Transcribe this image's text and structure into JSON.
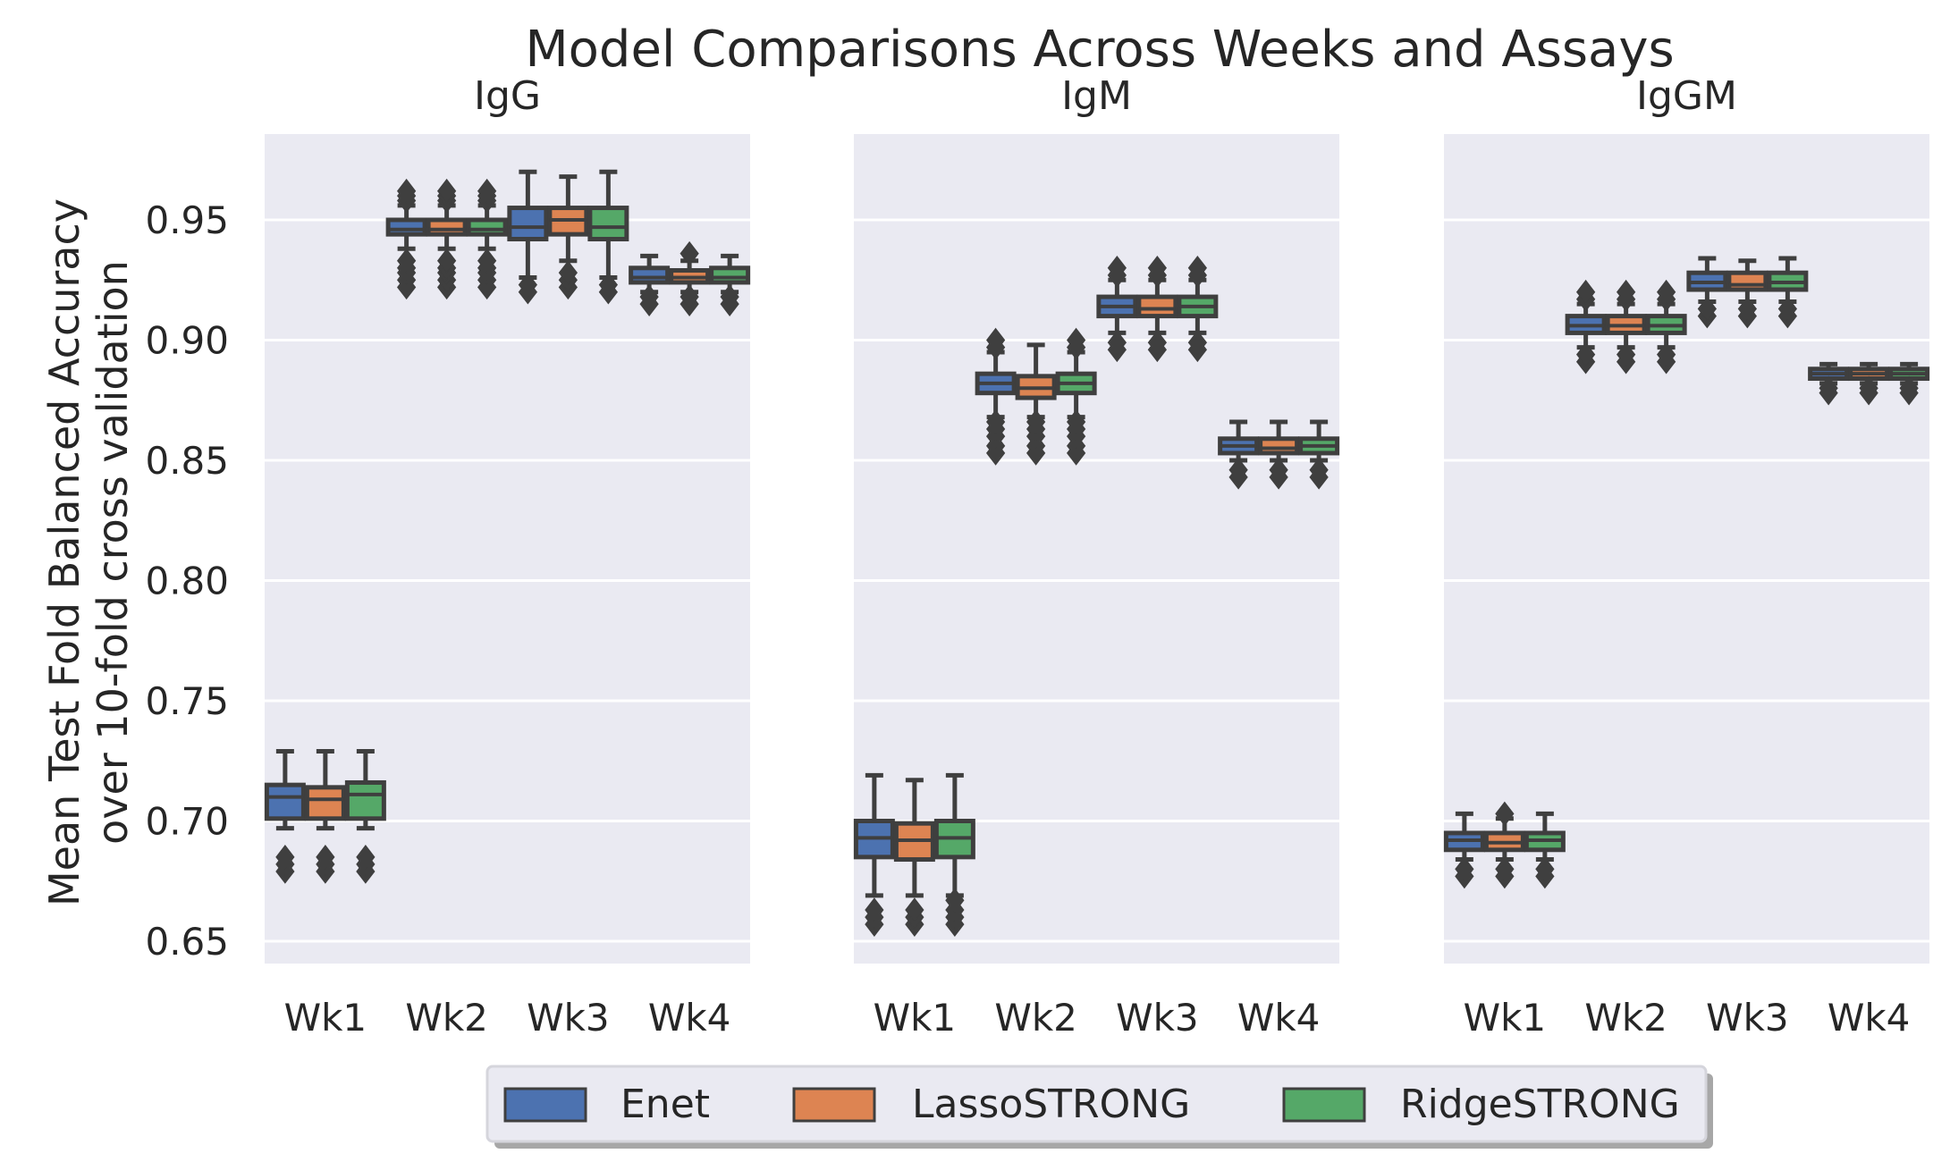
{
  "chart_data": {
    "type": "boxplot",
    "title": "Model Comparisons Across Weeks and Assays",
    "ylabel_line1": "Mean Test Fold Balanced Accuracy",
    "ylabel_line2": "over 10-fold cross validation",
    "ylim": [
      0.645,
      0.985
    ],
    "yticks": [
      "0.65",
      "0.70",
      "0.75",
      "0.80",
      "0.85",
      "0.90",
      "0.95"
    ],
    "categories": [
      "Wk1",
      "Wk2",
      "Wk3",
      "Wk4"
    ],
    "legend_placement": "bottom-center",
    "series_names": [
      "Enet",
      "LassoSTRONG",
      "RidgeSTRONG"
    ],
    "colors": [
      "#4c72b0",
      "#dd8452",
      "#55a868"
    ],
    "panels": [
      {
        "name": "IgG",
        "boxes": [
          [
            {
              "whislo": 0.697,
              "q1": 0.701,
              "med": 0.71,
              "q3": 0.715,
              "whishi": 0.729,
              "fliers": [
                0.679,
                0.682,
                0.685
              ]
            },
            {
              "whislo": 0.697,
              "q1": 0.701,
              "med": 0.709,
              "q3": 0.714,
              "whishi": 0.729,
              "fliers": [
                0.679,
                0.682,
                0.685
              ]
            },
            {
              "whislo": 0.697,
              "q1": 0.701,
              "med": 0.711,
              "q3": 0.716,
              "whishi": 0.729,
              "fliers": [
                0.679,
                0.682,
                0.685
              ]
            }
          ],
          [
            {
              "whislo": 0.938,
              "q1": 0.944,
              "med": 0.946,
              "q3": 0.95,
              "whishi": 0.956,
              "fliers": [
                0.922,
                0.925,
                0.928,
                0.93,
                0.933,
                0.958,
                0.96,
                0.962
              ]
            },
            {
              "whislo": 0.938,
              "q1": 0.944,
              "med": 0.946,
              "q3": 0.95,
              "whishi": 0.956,
              "fliers": [
                0.922,
                0.925,
                0.928,
                0.93,
                0.933,
                0.958,
                0.96,
                0.962
              ]
            },
            {
              "whislo": 0.938,
              "q1": 0.944,
              "med": 0.946,
              "q3": 0.95,
              "whishi": 0.956,
              "fliers": [
                0.922,
                0.925,
                0.928,
                0.93,
                0.933,
                0.958,
                0.96,
                0.962
              ]
            }
          ],
          [
            {
              "whislo": 0.926,
              "q1": 0.942,
              "med": 0.947,
              "q3": 0.955,
              "whishi": 0.97,
              "fliers": [
                0.92,
                0.923
              ]
            },
            {
              "whislo": 0.933,
              "q1": 0.944,
              "med": 0.95,
              "q3": 0.955,
              "whishi": 0.968,
              "fliers": [
                0.922,
                0.925,
                0.928
              ]
            },
            {
              "whislo": 0.926,
              "q1": 0.942,
              "med": 0.947,
              "q3": 0.955,
              "whishi": 0.97,
              "fliers": [
                0.92,
                0.923
              ]
            }
          ],
          [
            {
              "whislo": 0.92,
              "q1": 0.924,
              "med": 0.926,
              "q3": 0.93,
              "whishi": 0.935,
              "fliers": [
                0.915,
                0.918
              ]
            },
            {
              "whislo": 0.92,
              "q1": 0.924,
              "med": 0.926,
              "q3": 0.929,
              "whishi": 0.933,
              "fliers": [
                0.915,
                0.918,
                0.936
              ]
            },
            {
              "whislo": 0.92,
              "q1": 0.924,
              "med": 0.926,
              "q3": 0.93,
              "whishi": 0.935,
              "fliers": [
                0.915,
                0.918
              ]
            }
          ]
        ]
      },
      {
        "name": "IgM",
        "boxes": [
          [
            {
              "whislo": 0.669,
              "q1": 0.685,
              "med": 0.693,
              "q3": 0.7,
              "whishi": 0.719,
              "fliers": [
                0.657,
                0.66,
                0.663
              ]
            },
            {
              "whislo": 0.669,
              "q1": 0.684,
              "med": 0.692,
              "q3": 0.699,
              "whishi": 0.717,
              "fliers": [
                0.657,
                0.66,
                0.663
              ]
            },
            {
              "whislo": 0.669,
              "q1": 0.685,
              "med": 0.693,
              "q3": 0.7,
              "whishi": 0.719,
              "fliers": [
                0.657,
                0.66,
                0.663,
                0.667
              ]
            }
          ],
          [
            {
              "whislo": 0.868,
              "q1": 0.878,
              "med": 0.882,
              "q3": 0.886,
              "whishi": 0.895,
              "fliers": [
                0.853,
                0.856,
                0.86,
                0.863,
                0.866,
                0.897,
                0.9
              ]
            },
            {
              "whislo": 0.868,
              "q1": 0.876,
              "med": 0.88,
              "q3": 0.885,
              "whishi": 0.898,
              "fliers": [
                0.853,
                0.856,
                0.86,
                0.863,
                0.866
              ]
            },
            {
              "whislo": 0.868,
              "q1": 0.878,
              "med": 0.882,
              "q3": 0.886,
              "whishi": 0.895,
              "fliers": [
                0.853,
                0.856,
                0.86,
                0.863,
                0.866,
                0.897,
                0.9
              ]
            }
          ],
          [
            {
              "whislo": 0.903,
              "q1": 0.91,
              "med": 0.914,
              "q3": 0.918,
              "whishi": 0.925,
              "fliers": [
                0.896,
                0.899,
                0.927,
                0.93
              ]
            },
            {
              "whislo": 0.903,
              "q1": 0.91,
              "med": 0.913,
              "q3": 0.918,
              "whishi": 0.925,
              "fliers": [
                0.896,
                0.899,
                0.927,
                0.93
              ]
            },
            {
              "whislo": 0.903,
              "q1": 0.91,
              "med": 0.914,
              "q3": 0.918,
              "whishi": 0.925,
              "fliers": [
                0.896,
                0.899,
                0.927,
                0.93
              ]
            }
          ],
          [
            {
              "whislo": 0.85,
              "q1": 0.853,
              "med": 0.856,
              "q3": 0.859,
              "whishi": 0.866,
              "fliers": [
                0.843,
                0.846
              ]
            },
            {
              "whislo": 0.85,
              "q1": 0.853,
              "med": 0.855,
              "q3": 0.859,
              "whishi": 0.866,
              "fliers": [
                0.843,
                0.846
              ]
            },
            {
              "whislo": 0.85,
              "q1": 0.853,
              "med": 0.856,
              "q3": 0.859,
              "whishi": 0.866,
              "fliers": [
                0.843,
                0.846
              ]
            }
          ]
        ]
      },
      {
        "name": "IgGM",
        "boxes": [
          [
            {
              "whislo": 0.684,
              "q1": 0.688,
              "med": 0.692,
              "q3": 0.695,
              "whishi": 0.703,
              "fliers": [
                0.677,
                0.68
              ]
            },
            {
              "whislo": 0.684,
              "q1": 0.688,
              "med": 0.691,
              "q3": 0.695,
              "whishi": 0.701,
              "fliers": [
                0.677,
                0.68,
                0.703
              ]
            },
            {
              "whislo": 0.684,
              "q1": 0.688,
              "med": 0.692,
              "q3": 0.695,
              "whishi": 0.703,
              "fliers": [
                0.677,
                0.68
              ]
            }
          ],
          [
            {
              "whislo": 0.897,
              "q1": 0.903,
              "med": 0.906,
              "q3": 0.91,
              "whishi": 0.915,
              "fliers": [
                0.891,
                0.894,
                0.917,
                0.92
              ]
            },
            {
              "whislo": 0.897,
              "q1": 0.903,
              "med": 0.906,
              "q3": 0.91,
              "whishi": 0.915,
              "fliers": [
                0.891,
                0.894,
                0.917,
                0.92
              ]
            },
            {
              "whislo": 0.897,
              "q1": 0.903,
              "med": 0.906,
              "q3": 0.91,
              "whishi": 0.915,
              "fliers": [
                0.891,
                0.894,
                0.917,
                0.92
              ]
            }
          ],
          [
            {
              "whislo": 0.916,
              "q1": 0.921,
              "med": 0.924,
              "q3": 0.928,
              "whishi": 0.934,
              "fliers": [
                0.91,
                0.913
              ]
            },
            {
              "whislo": 0.916,
              "q1": 0.921,
              "med": 0.923,
              "q3": 0.928,
              "whishi": 0.933,
              "fliers": [
                0.91,
                0.913
              ]
            },
            {
              "whislo": 0.916,
              "q1": 0.921,
              "med": 0.924,
              "q3": 0.928,
              "whishi": 0.934,
              "fliers": [
                0.91,
                0.913
              ]
            }
          ],
          [
            {
              "whislo": 0.882,
              "q1": 0.884,
              "med": 0.886,
              "q3": 0.888,
              "whishi": 0.89,
              "fliers": [
                0.878,
                0.88
              ]
            },
            {
              "whislo": 0.882,
              "q1": 0.884,
              "med": 0.886,
              "q3": 0.888,
              "whishi": 0.89,
              "fliers": [
                0.878,
                0.88
              ]
            },
            {
              "whislo": 0.882,
              "q1": 0.884,
              "med": 0.886,
              "q3": 0.888,
              "whishi": 0.89,
              "fliers": [
                0.878,
                0.88
              ]
            }
          ]
        ]
      }
    ]
  }
}
